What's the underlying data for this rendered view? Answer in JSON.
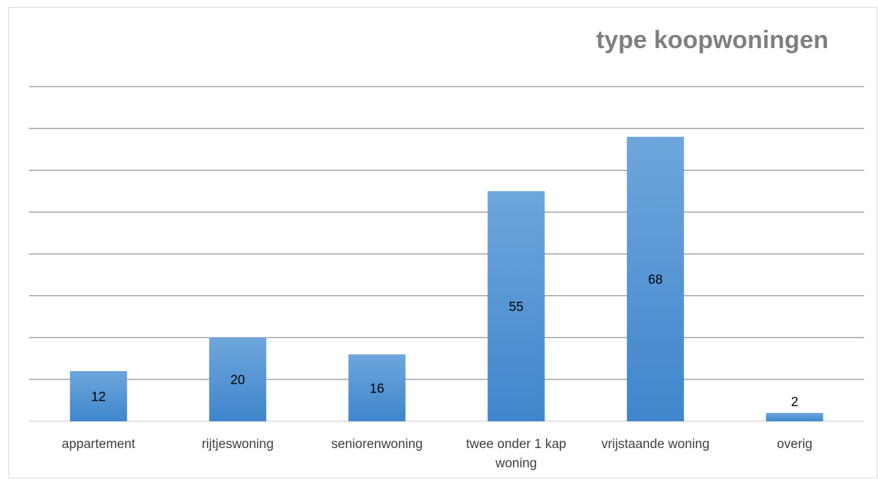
{
  "chart_data": {
    "type": "bar",
    "title": "type koopwoningen",
    "categories": [
      [
        "appartement"
      ],
      [
        "rijtjeswoning"
      ],
      [
        "seniorenwoning"
      ],
      [
        "twee onder 1 kap",
        "woning"
      ],
      [
        "vrijstaande woning"
      ],
      [
        "overig"
      ]
    ],
    "values": [
      12,
      20,
      16,
      55,
      68,
      2
    ],
    "data_labels": [
      "12",
      "20",
      "16",
      "55",
      "68",
      "2"
    ],
    "ylim": [
      0,
      80
    ],
    "gridline_step": 10,
    "grid": true,
    "legend": "none",
    "bar_color": "#5b9bd5"
  }
}
